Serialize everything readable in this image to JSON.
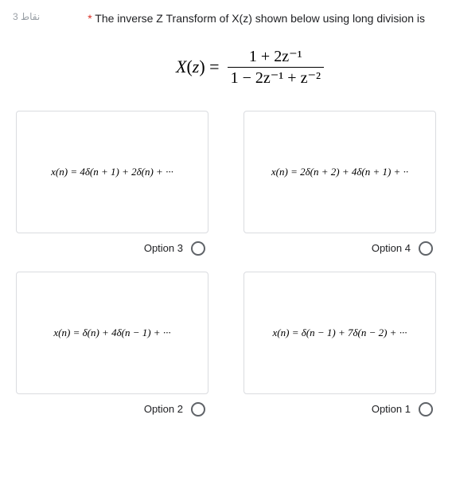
{
  "pointsLabel": "نقاط 3",
  "asterisk": "*",
  "questionText": " The inverse Z Transform of X(z) shown below using long division is",
  "formula": {
    "lhs": "X(z) = ",
    "numerator": "1 + 2z⁻¹",
    "denominator": "1 − 2z⁻¹ + z⁻²"
  },
  "options": [
    {
      "name": "option-3",
      "label": "Option 3",
      "expression": "x(n) = 4δ(n + 1) + 2δ(n) + ···"
    },
    {
      "name": "option-4",
      "label": "Option 4",
      "expression": "x(n) = 2δ(n + 2) + 4δ(n + 1) + ··"
    },
    {
      "name": "option-2",
      "label": "Option 2",
      "expression": "x(n) = δ(n) + 4δ(n − 1) + ···"
    },
    {
      "name": "option-1",
      "label": "Option 1",
      "expression": "x(n) = δ(n − 1) + 7δ(n − 2) + ···"
    }
  ]
}
